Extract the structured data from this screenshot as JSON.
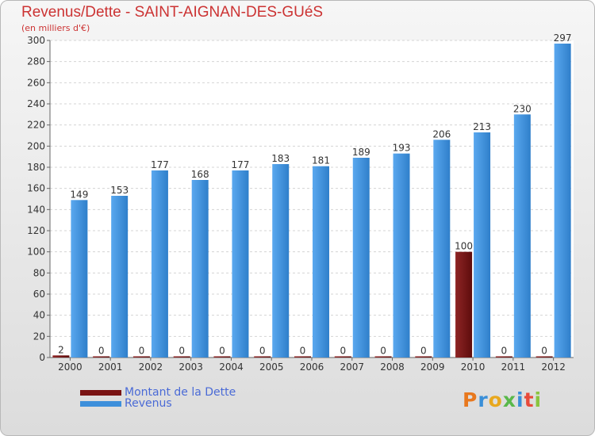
{
  "title": "Revenus/Dette - SAINT-AIGNAN-DES-GUéS",
  "subtitle": "(en milliers d'€)",
  "legend": [
    {
      "label": "Montant de la Dette",
      "color": "#7a1414"
    },
    {
      "label": "Revenus",
      "color": "#3d8fdb"
    }
  ],
  "logo": {
    "text": "Proxiti",
    "letters": [
      {
        "char": "P",
        "color": "#e8781e"
      },
      {
        "char": "r",
        "color": "#3a8fd8"
      },
      {
        "char": "o",
        "color": "#e8a81e"
      },
      {
        "char": "x",
        "color": "#59b84a"
      },
      {
        "char": "i",
        "color": "#3a8fd8"
      },
      {
        "char": "t",
        "color": "#e84a3a"
      },
      {
        "char": "i",
        "color": "#8ac43f"
      }
    ]
  },
  "chart_data": {
    "type": "bar",
    "categories": [
      "2000",
      "2001",
      "2002",
      "2003",
      "2004",
      "2005",
      "2006",
      "2007",
      "2008",
      "2009",
      "2010",
      "2011",
      "2012"
    ],
    "series": [
      {
        "name": "Montant de la Dette",
        "color": "#7a1414",
        "values": [
          2,
          0,
          0,
          0,
          0,
          0,
          0,
          0,
          0,
          0,
          100,
          0,
          0
        ]
      },
      {
        "name": "Revenus",
        "color": "#3d8fdb",
        "values": [
          149,
          153,
          177,
          168,
          177,
          183,
          181,
          189,
          193,
          206,
          213,
          230,
          297
        ]
      }
    ],
    "ylim": [
      0,
      300
    ],
    "yticks": [
      0,
      20,
      40,
      60,
      80,
      100,
      120,
      140,
      160,
      180,
      200,
      220,
      240,
      260,
      280,
      300
    ],
    "grid": true,
    "legend_position": "bottom-left"
  }
}
